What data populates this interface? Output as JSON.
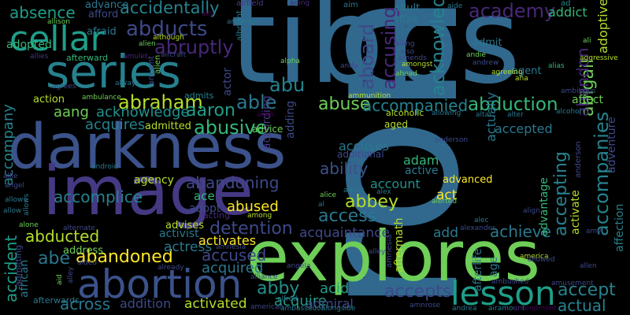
{
  "word_cloud": {
    "background": "#000000",
    "words": [
      {
        "text": "ron",
        "color": "#31688e"
      },
      {
        "text": "tibbs",
        "color": "#31688e"
      },
      {
        "text": "darkness",
        "color": "#3b528b"
      },
      {
        "text": "image",
        "color": "#443983"
      },
      {
        "text": "explores",
        "color": "#6ece58"
      },
      {
        "text": "series",
        "color": "#26828e"
      },
      {
        "text": "cellar",
        "color": "#1f9e89"
      },
      {
        "text": "abortion",
        "color": "#3b528b"
      },
      {
        "text": "lesson",
        "color": "#1f9e89"
      },
      {
        "text": "abuse",
        "color": "#6ece58"
      },
      {
        "text": "abducts",
        "color": "#3e4989"
      },
      {
        "text": "academy",
        "color": "#482878"
      },
      {
        "text": "abraham",
        "color": "#b5de2b"
      },
      {
        "text": "abruptly",
        "color": "#482878"
      },
      {
        "text": "abduction",
        "color": "#35b779"
      },
      {
        "text": "abandoning",
        "color": "#3e4989"
      },
      {
        "text": "abandoned",
        "color": "#fde725"
      },
      {
        "text": "detention",
        "color": "#3e4989"
      },
      {
        "text": "abusive",
        "color": "#35b779"
      },
      {
        "text": "accepts",
        "color": "#3e4989"
      },
      {
        "text": "accompanied",
        "color": "#26828e"
      },
      {
        "text": "absence",
        "color": "#1f9e89"
      },
      {
        "text": "accidentally",
        "color": "#26828e"
      },
      {
        "text": "ability",
        "color": "#3b528b"
      },
      {
        "text": "abby",
        "color": "#21918c"
      },
      {
        "text": "abbey",
        "color": "#b5de2b"
      },
      {
        "text": "access",
        "color": "#2a788e"
      },
      {
        "text": "aaron",
        "color": "#1f9e89"
      },
      {
        "text": "able",
        "color": "#2a788e"
      },
      {
        "text": "abu",
        "color": "#26828e"
      },
      {
        "text": "accept",
        "color": "#26828e"
      },
      {
        "text": "abducted",
        "color": "#b5de2b"
      },
      {
        "text": "accused",
        "color": "#3e4989"
      },
      {
        "text": "abused",
        "color": "#fde725"
      },
      {
        "text": "accomplice",
        "color": "#26828e"
      },
      {
        "text": "actual",
        "color": "#26828e"
      },
      {
        "text": "acquires",
        "color": "#26828e"
      },
      {
        "text": "accuses",
        "color": "#2a788e"
      },
      {
        "text": "achieve",
        "color": "#2a788e"
      },
      {
        "text": "acquaintance",
        "color": "#3e4989"
      },
      {
        "text": "acquire",
        "color": "#1f9e89"
      },
      {
        "text": "actress",
        "color": "#2a788e"
      },
      {
        "text": "across",
        "color": "#2a788e"
      },
      {
        "text": "aboard",
        "color": "#3e4989"
      },
      {
        "text": "accusing",
        "color": "#482878"
      },
      {
        "text": "acknowledges",
        "color": "#26828e"
      },
      {
        "text": "accompanies",
        "color": "#26828e"
      },
      {
        "text": "abigail",
        "color": "#6ece58"
      },
      {
        "text": "accepting",
        "color": "#26828e"
      },
      {
        "text": "accompany",
        "color": "#26828e"
      },
      {
        "text": "accident",
        "color": "#1f9e89"
      },
      {
        "text": "abandon",
        "color": "#482878"
      },
      {
        "text": "acid",
        "color": "#1f9e89"
      },
      {
        "text": "acquired",
        "color": "#2a788e"
      },
      {
        "text": "addition",
        "color": "#3e4989"
      },
      {
        "text": "activated",
        "color": "#b5de2b"
      },
      {
        "text": "activates",
        "color": "#fde725"
      },
      {
        "text": "accepted",
        "color": "#2a788e"
      },
      {
        "text": "advance",
        "color": "#2a788e"
      },
      {
        "text": "actor",
        "color": "#3e4989"
      },
      {
        "text": "aang",
        "color": "#6ece58"
      },
      {
        "text": "abe",
        "color": "#2a788e"
      },
      {
        "text": "acknowledge",
        "color": "#21918c"
      },
      {
        "text": "action",
        "color": "#b5de2b"
      },
      {
        "text": "account",
        "color": "#21918c"
      },
      {
        "text": "adam",
        "color": "#35b779"
      },
      {
        "text": "act",
        "color": "#fde725"
      },
      {
        "text": "ace",
        "color": "#35b779"
      },
      {
        "text": "add",
        "color": "#2a788e"
      },
      {
        "text": "admiral",
        "color": "#3e4989"
      },
      {
        "text": "activist",
        "color": "#2a788e"
      },
      {
        "text": "active",
        "color": "#2a788e"
      },
      {
        "text": "advanced",
        "color": "#fde725"
      },
      {
        "text": "addict",
        "color": "#35b779"
      },
      {
        "text": "adopted",
        "color": "#35b779"
      },
      {
        "text": "according",
        "color": "#443983"
      },
      {
        "text": "adding",
        "color": "#3e4989"
      },
      {
        "text": "actually",
        "color": "#2a788e"
      },
      {
        "text": "activate",
        "color": "#b5de2b"
      },
      {
        "text": "adoptive",
        "color": "#b5de2b"
      },
      {
        "text": "adventure",
        "color": "#3e4989"
      },
      {
        "text": "affection",
        "color": "#26828e"
      },
      {
        "text": "advantage",
        "color": "#35b779"
      },
      {
        "text": "advises",
        "color": "#b5de2b"
      },
      {
        "text": "admitted",
        "color": "#b5de2b"
      },
      {
        "text": "adopt",
        "color": "#3e4989"
      },
      {
        "text": "advice",
        "color": "#6ece58"
      },
      {
        "text": "affect",
        "color": "#6ece58"
      },
      {
        "text": "afraid",
        "color": "#2a788e"
      },
      {
        "text": "afford",
        "color": "#3e4989"
      },
      {
        "text": "adult",
        "color": "#2a788e"
      },
      {
        "text": "admit",
        "color": "#2a788e"
      },
      {
        "text": "affair",
        "color": "#2a788e"
      },
      {
        "text": "agent",
        "color": "#2a788e"
      },
      {
        "text": "aged",
        "color": "#b5de2b"
      },
      {
        "text": "additional",
        "color": "#3e4989"
      },
      {
        "text": "address",
        "color": "#6ece58"
      },
      {
        "text": "activity",
        "color": "#35b779"
      },
      {
        "text": "african",
        "color": "#2a788e"
      },
      {
        "text": "afterlife",
        "color": "#2a788e"
      },
      {
        "text": "aftermath",
        "color": "#b5de2b"
      },
      {
        "text": "acting",
        "color": "#482878"
      },
      {
        "text": "agency",
        "color": "#b5de2b"
      },
      {
        "text": "admits",
        "color": "#26828e"
      },
      {
        "text": "admitting",
        "color": "#3e4989"
      },
      {
        "text": "afterwards",
        "color": "#2a788e"
      },
      {
        "text": "afterward",
        "color": "#35b779"
      },
      {
        "text": "age",
        "color": "#2a788e"
      },
      {
        "text": "ad",
        "color": "#26828e"
      },
      {
        "text": "alcoholic",
        "color": "#b5de2b"
      },
      {
        "text": "aircraft",
        "color": "#3e4989"
      },
      {
        "text": "airfield",
        "color": "#443983"
      },
      {
        "text": "albright",
        "color": "#2a788e"
      },
      {
        "text": "ally",
        "color": "#440154"
      },
      {
        "text": "ambition",
        "color": "#2a788e"
      },
      {
        "text": "along",
        "color": "#2a788e"
      },
      {
        "text": "aging",
        "color": "#482878"
      },
      {
        "text": "aim",
        "color": "#2a788e"
      },
      {
        "text": "aide",
        "color": "#2a788e"
      },
      {
        "text": "ailing",
        "color": "#3e4989"
      },
      {
        "text": "also",
        "color": "#3e4989"
      },
      {
        "text": "amends",
        "color": "#3e4989"
      },
      {
        "text": "amongst",
        "color": "#b5de2b"
      },
      {
        "text": "ahead",
        "color": "#6ece58"
      },
      {
        "text": "andie",
        "color": "#6ece58"
      },
      {
        "text": "andrew",
        "color": "#3e4989"
      },
      {
        "text": "agreeing",
        "color": "#b5de2b"
      },
      {
        "text": "ana",
        "color": "#b5de2b"
      },
      {
        "text": "alias",
        "color": "#35b779"
      },
      {
        "text": "aggressive",
        "color": "#b5de2b"
      },
      {
        "text": "ambitious",
        "color": "#3e4989"
      },
      {
        "text": "alcohol",
        "color": "#2a788e"
      },
      {
        "text": "alter",
        "color": "#2a788e"
      },
      {
        "text": "altar",
        "color": "#2a788e"
      },
      {
        "text": "allowing",
        "color": "#2a788e"
      },
      {
        "text": "ali",
        "color": "#6ece58"
      },
      {
        "text": "allison",
        "color": "#6ece58"
      },
      {
        "text": "although",
        "color": "#b5de2b"
      },
      {
        "text": "alien",
        "color": "#6ece58"
      },
      {
        "text": "ancient",
        "color": "#3e4989"
      },
      {
        "text": "allies",
        "color": "#443983"
      },
      {
        "text": "amulet",
        "color": "#482878"
      },
      {
        "text": "alpha",
        "color": "#6ece58"
      },
      {
        "text": "always",
        "color": "#2a788e"
      },
      {
        "text": "ambulance",
        "color": "#6ece58"
      },
      {
        "text": "ammunition",
        "color": "#b5de2b"
      },
      {
        "text": "andy",
        "color": "#3e4989"
      },
      {
        "text": "agrees",
        "color": "#3e4989"
      },
      {
        "text": "anderson",
        "color": "#3e4989"
      },
      {
        "text": "almost",
        "color": "#3e4989"
      },
      {
        "text": "android",
        "color": "#2a788e"
      },
      {
        "text": "allie",
        "color": "#3e4989"
      },
      {
        "text": "angel",
        "color": "#3e4989"
      },
      {
        "text": "allows",
        "color": "#2a788e"
      },
      {
        "text": "airport",
        "color": "#2a788e"
      },
      {
        "text": "allow",
        "color": "#2a788e"
      },
      {
        "text": "alice",
        "color": "#6ece58"
      },
      {
        "text": "albert",
        "color": "#2a788e"
      },
      {
        "text": "alex",
        "color": "#2a788e"
      },
      {
        "text": "alerted",
        "color": "#6ece58"
      },
      {
        "text": "al",
        "color": "#2a788e"
      },
      {
        "text": "among",
        "color": "#b5de2b"
      },
      {
        "text": "alone",
        "color": "#6ece58"
      },
      {
        "text": "alternate",
        "color": "#3e4989"
      },
      {
        "text": "amnesia",
        "color": "#3e4989"
      },
      {
        "text": "alexander",
        "color": "#3e4989"
      },
      {
        "text": "alec",
        "color": "#2a788e"
      },
      {
        "text": "align",
        "color": "#3e4989"
      },
      {
        "text": "amy",
        "color": "#3e4989"
      },
      {
        "text": "alley",
        "color": "#3e4989"
      },
      {
        "text": "aid",
        "color": "#6ece58"
      },
      {
        "text": "america",
        "color": "#b5de2b"
      },
      {
        "text": "allowed",
        "color": "#3e4989"
      },
      {
        "text": "allen",
        "color": "#3e4989"
      },
      {
        "text": "already",
        "color": "#3e4989"
      },
      {
        "text": "aided",
        "color": "#3e4989"
      },
      {
        "text": "alert",
        "color": "#3e4989"
      },
      {
        "text": "alameln",
        "color": "#3e4989"
      },
      {
        "text": "angela",
        "color": "#3e4989"
      },
      {
        "text": "alliance",
        "color": "#3e4989"
      },
      {
        "text": "amusement",
        "color": "#3e4989"
      },
      {
        "text": "ambushed",
        "color": "#3e4989"
      },
      {
        "text": "alfred",
        "color": "#2a788e"
      },
      {
        "text": "american",
        "color": "#3e4989"
      },
      {
        "text": "ambassador",
        "color": "#2a788e"
      },
      {
        "text": "alongside",
        "color": "#2a788e"
      },
      {
        "text": "amnrose",
        "color": "#3e4989"
      },
      {
        "text": "andrea",
        "color": "#2a788e"
      },
      {
        "text": "airamount",
        "color": "#2a788e"
      },
      {
        "text": "amendment",
        "color": "#440154"
      },
      {
        "text": "alien",
        "color": "#440154"
      }
    ]
  }
}
